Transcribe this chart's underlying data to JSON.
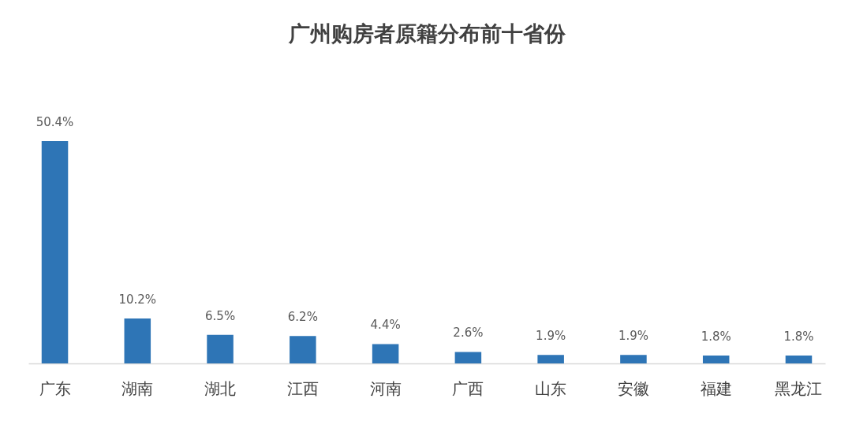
{
  "chart_data": {
    "type": "bar",
    "title": "广州购房者原籍分布前十省份",
    "categories": [
      "广东",
      "湖南",
      "湖北",
      "江西",
      "河南",
      "广西",
      "山东",
      "安徽",
      "福建",
      "黑龙江"
    ],
    "values": [
      50.4,
      10.2,
      6.5,
      6.2,
      4.4,
      2.6,
      1.9,
      1.9,
      1.8,
      1.8
    ],
    "value_labels": [
      "50.4%",
      "10.2%",
      "6.5%",
      "6.2%",
      "4.4%",
      "2.6%",
      "1.9%",
      "1.9%",
      "1.8%",
      "1.8%"
    ],
    "color": "#2e75b6"
  }
}
